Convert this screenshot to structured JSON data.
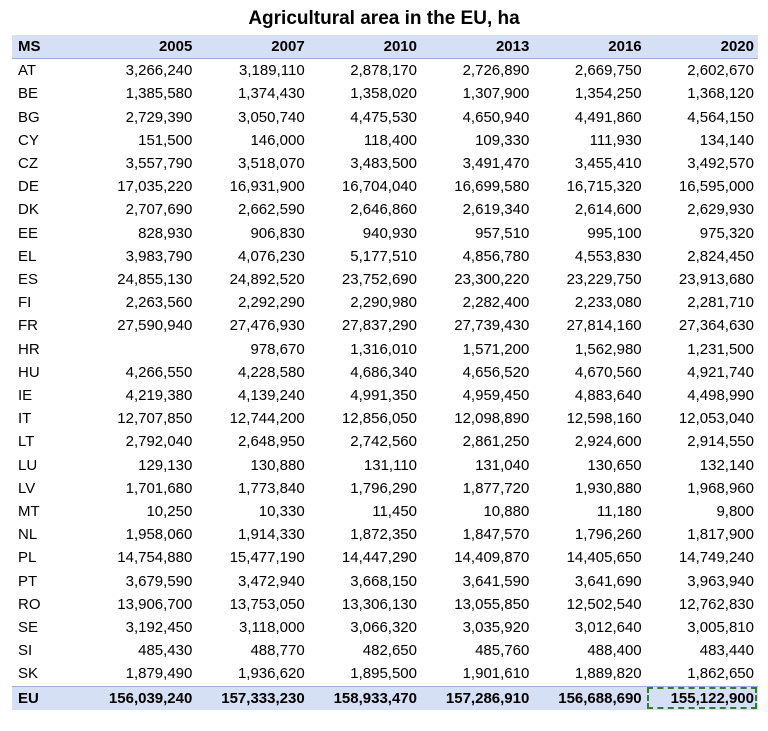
{
  "chart_data": {
    "type": "table",
    "title": "Agricultural area in the EU, ha",
    "columns": [
      "MS",
      "2005",
      "2007",
      "2010",
      "2013",
      "2016",
      "2020"
    ],
    "rows": [
      [
        "AT",
        "3,266,240",
        "3,189,110",
        "2,878,170",
        "2,726,890",
        "2,669,750",
        "2,602,670"
      ],
      [
        "BE",
        "1,385,580",
        "1,374,430",
        "1,358,020",
        "1,307,900",
        "1,354,250",
        "1,368,120"
      ],
      [
        "BG",
        "2,729,390",
        "3,050,740",
        "4,475,530",
        "4,650,940",
        "4,491,860",
        "4,564,150"
      ],
      [
        "CY",
        "151,500",
        "146,000",
        "118,400",
        "109,330",
        "111,930",
        "134,140"
      ],
      [
        "CZ",
        "3,557,790",
        "3,518,070",
        "3,483,500",
        "3,491,470",
        "3,455,410",
        "3,492,570"
      ],
      [
        "DE",
        "17,035,220",
        "16,931,900",
        "16,704,040",
        "16,699,580",
        "16,715,320",
        "16,595,000"
      ],
      [
        "DK",
        "2,707,690",
        "2,662,590",
        "2,646,860",
        "2,619,340",
        "2,614,600",
        "2,629,930"
      ],
      [
        "EE",
        "828,930",
        "906,830",
        "940,930",
        "957,510",
        "995,100",
        "975,320"
      ],
      [
        "EL",
        "3,983,790",
        "4,076,230",
        "5,177,510",
        "4,856,780",
        "4,553,830",
        "2,824,450"
      ],
      [
        "ES",
        "24,855,130",
        "24,892,520",
        "23,752,690",
        "23,300,220",
        "23,229,750",
        "23,913,680"
      ],
      [
        "FI",
        "2,263,560",
        "2,292,290",
        "2,290,980",
        "2,282,400",
        "2,233,080",
        "2,281,710"
      ],
      [
        "FR",
        "27,590,940",
        "27,476,930",
        "27,837,290",
        "27,739,430",
        "27,814,160",
        "27,364,630"
      ],
      [
        "HR",
        "",
        "978,670",
        "1,316,010",
        "1,571,200",
        "1,562,980",
        "1,231,500"
      ],
      [
        "HU",
        "4,266,550",
        "4,228,580",
        "4,686,340",
        "4,656,520",
        "4,670,560",
        "4,921,740"
      ],
      [
        "IE",
        "4,219,380",
        "4,139,240",
        "4,991,350",
        "4,959,450",
        "4,883,640",
        "4,498,990"
      ],
      [
        "IT",
        "12,707,850",
        "12,744,200",
        "12,856,050",
        "12,098,890",
        "12,598,160",
        "12,053,040"
      ],
      [
        "LT",
        "2,792,040",
        "2,648,950",
        "2,742,560",
        "2,861,250",
        "2,924,600",
        "2,914,550"
      ],
      [
        "LU",
        "129,130",
        "130,880",
        "131,110",
        "131,040",
        "130,650",
        "132,140"
      ],
      [
        "LV",
        "1,701,680",
        "1,773,840",
        "1,796,290",
        "1,877,720",
        "1,930,880",
        "1,968,960"
      ],
      [
        "MT",
        "10,250",
        "10,330",
        "11,450",
        "10,880",
        "11,180",
        "9,800"
      ],
      [
        "NL",
        "1,958,060",
        "1,914,330",
        "1,872,350",
        "1,847,570",
        "1,796,260",
        "1,817,900"
      ],
      [
        "PL",
        "14,754,880",
        "15,477,190",
        "14,447,290",
        "14,409,870",
        "14,405,650",
        "14,749,240"
      ],
      [
        "PT",
        "3,679,590",
        "3,472,940",
        "3,668,150",
        "3,641,590",
        "3,641,690",
        "3,963,940"
      ],
      [
        "RO",
        "13,906,700",
        "13,753,050",
        "13,306,130",
        "13,055,850",
        "12,502,540",
        "12,762,830"
      ],
      [
        "SE",
        "3,192,450",
        "3,118,000",
        "3,066,320",
        "3,035,920",
        "3,012,640",
        "3,005,810"
      ],
      [
        "SI",
        "485,430",
        "488,770",
        "482,650",
        "485,760",
        "488,400",
        "483,440"
      ],
      [
        "SK",
        "1,879,490",
        "1,936,620",
        "1,895,500",
        "1,901,610",
        "1,889,820",
        "1,862,650"
      ]
    ],
    "total_row": [
      "EU",
      "156,039,240",
      "157,333,230",
      "158,933,470",
      "157,286,910",
      "156,688,690",
      "155,122,900"
    ],
    "selected_cell": "EU 2020",
    "colors": {
      "header_fill": "#d6e0f5",
      "selection_border": "#2e7d32"
    }
  }
}
